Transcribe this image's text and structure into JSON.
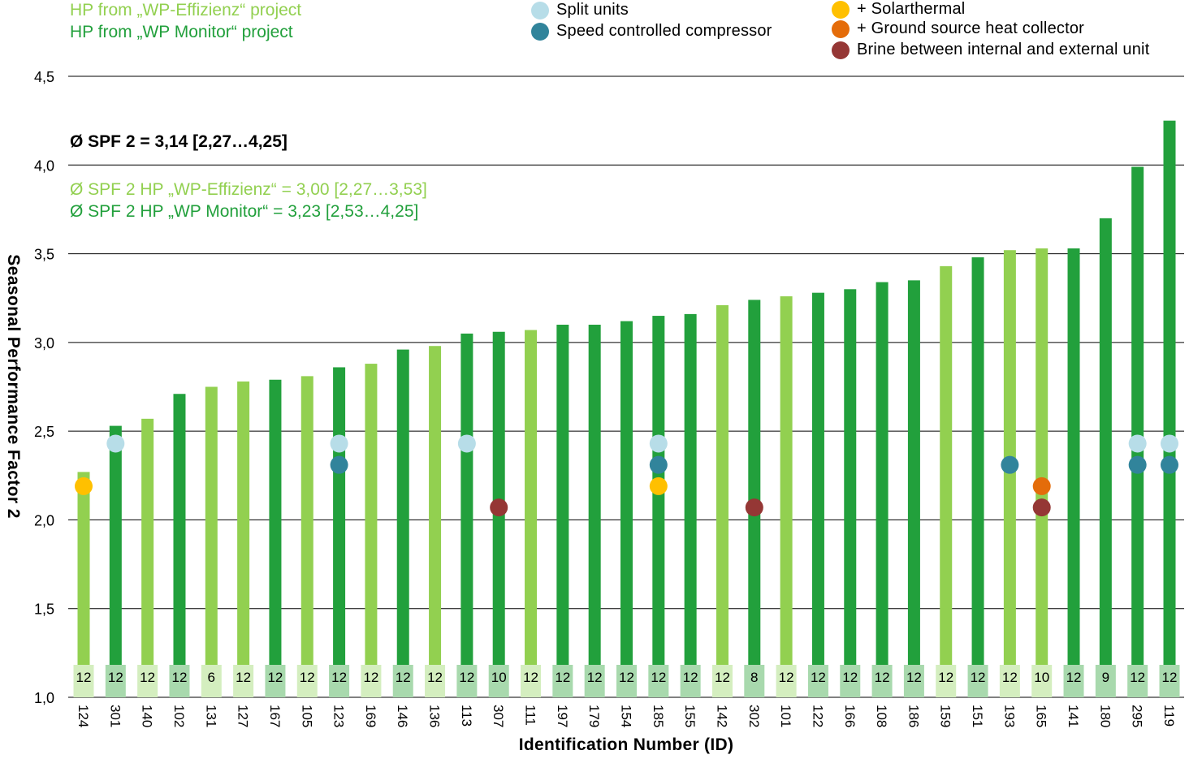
{
  "legend": {
    "projects": [
      {
        "label": "HP from „WP-Effizienz“ project",
        "color": "#92d050"
      },
      {
        "label": "HP from „WP Monitor“ project",
        "color": "#22a03c"
      }
    ],
    "markers_col1": [
      {
        "label": "Split units",
        "color": "#b7dde8"
      },
      {
        "label": "Speed controlled compressor",
        "color": "#31849b"
      }
    ],
    "markers_col2": [
      {
        "label": "+ Solarthermal",
        "color": "#ffc000"
      },
      {
        "label": "+ Ground source heat collector",
        "color": "#e46c0a"
      },
      {
        "label": "Brine between internal and external unit",
        "color": "#953735"
      }
    ]
  },
  "annotations": {
    "overall": "Ø SPF 2 = 3,14 [2,27…4,25]",
    "effizienz": "Ø SPF 2 HP „WP-Effizienz“ = 3,00 [2,27…3,53]",
    "monitor": "Ø SPF 2 HP „WP Monitor“ = 3,23 [2,53…4,25]"
  },
  "chart_data": {
    "type": "bar",
    "xlabel": "Identification Number (ID)",
    "ylabel": "Seasonal Performance Factor 2",
    "ylim": [
      1.0,
      4.5
    ],
    "yticks": [
      "1,0",
      "1,5",
      "2,0",
      "2,5",
      "3,0",
      "3,5",
      "4,0",
      "4,5"
    ],
    "grid": true,
    "colors": {
      "effizienz": "#92d050",
      "monitor": "#22a03c",
      "split": "#b7dde8",
      "speed": "#31849b",
      "solar": "#ffc000",
      "ground": "#e46c0a",
      "brine": "#953735"
    },
    "bars": [
      {
        "id": "124",
        "value": 2.27,
        "project": "effizienz",
        "months": "12",
        "markers": [
          "solar"
        ]
      },
      {
        "id": "301",
        "value": 2.53,
        "project": "monitor",
        "months": "12",
        "markers": [
          "split"
        ]
      },
      {
        "id": "140",
        "value": 2.57,
        "project": "effizienz",
        "months": "12",
        "markers": []
      },
      {
        "id": "102",
        "value": 2.71,
        "project": "monitor",
        "months": "12",
        "markers": []
      },
      {
        "id": "131",
        "value": 2.75,
        "project": "effizienz",
        "months": "6",
        "markers": []
      },
      {
        "id": "127",
        "value": 2.78,
        "project": "effizienz",
        "months": "12",
        "markers": []
      },
      {
        "id": "167",
        "value": 2.79,
        "project": "monitor",
        "months": "12",
        "markers": []
      },
      {
        "id": "105",
        "value": 2.81,
        "project": "effizienz",
        "months": "12",
        "markers": []
      },
      {
        "id": "123",
        "value": 2.86,
        "project": "monitor",
        "months": "12",
        "markers": [
          "split",
          "speed"
        ]
      },
      {
        "id": "169",
        "value": 2.88,
        "project": "effizienz",
        "months": "12",
        "markers": []
      },
      {
        "id": "146",
        "value": 2.96,
        "project": "monitor",
        "months": "12",
        "markers": []
      },
      {
        "id": "136",
        "value": 2.98,
        "project": "effizienz",
        "months": "12",
        "markers": []
      },
      {
        "id": "113",
        "value": 3.05,
        "project": "monitor",
        "months": "12",
        "markers": [
          "split"
        ]
      },
      {
        "id": "307",
        "value": 3.06,
        "project": "monitor",
        "months": "10",
        "markers": [
          "brine"
        ]
      },
      {
        "id": "111",
        "value": 3.07,
        "project": "effizienz",
        "months": "12",
        "markers": []
      },
      {
        "id": "197",
        "value": 3.1,
        "project": "monitor",
        "months": "12",
        "markers": []
      },
      {
        "id": "179",
        "value": 3.1,
        "project": "monitor",
        "months": "12",
        "markers": []
      },
      {
        "id": "154",
        "value": 3.12,
        "project": "monitor",
        "months": "12",
        "markers": []
      },
      {
        "id": "185",
        "value": 3.15,
        "project": "monitor",
        "months": "12",
        "markers": [
          "split",
          "speed",
          "solar"
        ]
      },
      {
        "id": "155",
        "value": 3.16,
        "project": "monitor",
        "months": "12",
        "markers": []
      },
      {
        "id": "142",
        "value": 3.21,
        "project": "effizienz",
        "months": "12",
        "markers": []
      },
      {
        "id": "302",
        "value": 3.24,
        "project": "monitor",
        "months": "8",
        "markers": [
          "brine"
        ]
      },
      {
        "id": "101",
        "value": 3.26,
        "project": "effizienz",
        "months": "12",
        "markers": []
      },
      {
        "id": "122",
        "value": 3.28,
        "project": "monitor",
        "months": "12",
        "markers": []
      },
      {
        "id": "166",
        "value": 3.3,
        "project": "monitor",
        "months": "12",
        "markers": []
      },
      {
        "id": "108",
        "value": 3.34,
        "project": "monitor",
        "months": "12",
        "markers": []
      },
      {
        "id": "186",
        "value": 3.35,
        "project": "monitor",
        "months": "12",
        "markers": []
      },
      {
        "id": "159",
        "value": 3.43,
        "project": "effizienz",
        "months": "12",
        "markers": []
      },
      {
        "id": "151",
        "value": 3.48,
        "project": "monitor",
        "months": "12",
        "markers": []
      },
      {
        "id": "193",
        "value": 3.52,
        "project": "effizienz",
        "months": "12",
        "markers": [
          "speed"
        ]
      },
      {
        "id": "165",
        "value": 3.53,
        "project": "effizienz",
        "months": "10",
        "markers": [
          "ground",
          "brine"
        ]
      },
      {
        "id": "141",
        "value": 3.53,
        "project": "monitor",
        "months": "12",
        "markers": []
      },
      {
        "id": "180",
        "value": 3.7,
        "project": "monitor",
        "months": "9",
        "markers": []
      },
      {
        "id": "295",
        "value": 3.99,
        "project": "monitor",
        "months": "12",
        "markers": [
          "split",
          "speed"
        ]
      },
      {
        "id": "119",
        "value": 4.25,
        "project": "monitor",
        "months": "12",
        "markers": [
          "split",
          "speed"
        ]
      }
    ]
  }
}
